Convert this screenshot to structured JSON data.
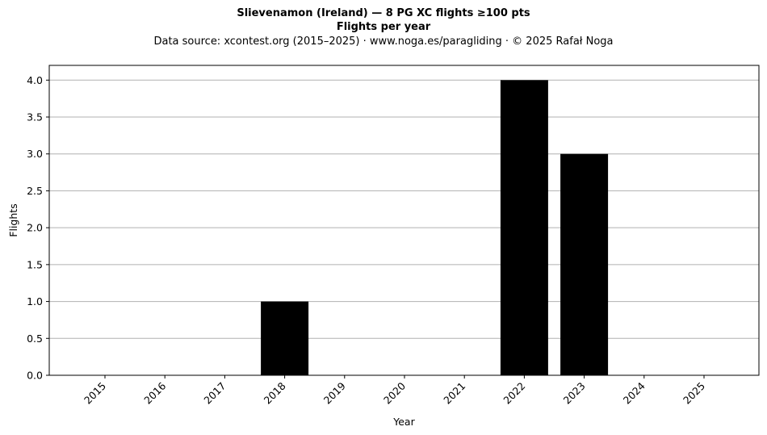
{
  "chart_data": {
    "type": "bar",
    "title": "Slievenamon (Ireland)  —  8 PG XC flights ≥100 pts",
    "subtitle": "Flights per year",
    "source": "Data source: xcontest.org (2015–2025)  ·  www.noga.es/paragliding  ·  © 2025 Rafał Noga",
    "xlabel": "Year",
    "ylabel": "Flights",
    "categories": [
      "2015",
      "2016",
      "2017",
      "2018",
      "2019",
      "2020",
      "2021",
      "2022",
      "2023",
      "2024",
      "2025"
    ],
    "values": [
      0,
      0,
      0,
      1,
      0,
      0,
      0,
      4,
      3,
      0,
      0
    ],
    "ylim": [
      0,
      4.2
    ],
    "yticks": [
      "0.0",
      "0.5",
      "1.0",
      "1.5",
      "2.0",
      "2.5",
      "3.0",
      "3.5",
      "4.0"
    ],
    "grid": "horizontal",
    "bar_color": "#000000",
    "grid_color": "#b0b0b0"
  }
}
